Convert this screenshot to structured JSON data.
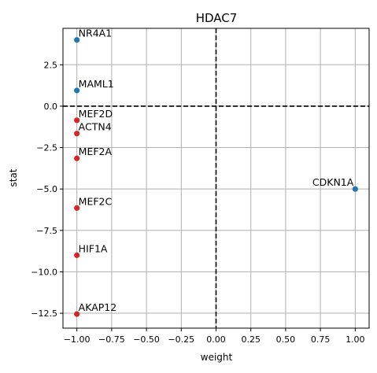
{
  "chart_data": {
    "type": "scatter",
    "title": "HDAC7",
    "xlabel": "weight",
    "ylabel": "stat",
    "xlim": [
      -1.1,
      1.1
    ],
    "ylim": [
      -13.4,
      4.7
    ],
    "xticks": [
      -1.0,
      -0.75,
      -0.5,
      -0.25,
      0.0,
      0.25,
      0.5,
      0.75,
      1.0
    ],
    "xtick_labels": [
      "−1.00",
      "−0.75",
      "−0.50",
      "−0.25",
      "0.00",
      "0.25",
      "0.50",
      "0.75",
      "1.00"
    ],
    "yticks": [
      2.5,
      0.0,
      -2.5,
      -5.0,
      -7.5,
      -10.0,
      -12.5
    ],
    "ytick_labels": [
      "2.5",
      "0.0",
      "−2.5",
      "−5.0",
      "−7.5",
      "−10.0",
      "−12.5"
    ],
    "grid": true,
    "reference_lines": {
      "x": 0,
      "y": 0,
      "style": "dashed",
      "color": "#000000"
    },
    "colors": {
      "positive": "#1f77b4",
      "negative": "#d62728",
      "grid": "#b0b0b0"
    },
    "points": [
      {
        "label": "NR4A1",
        "x": -1.0,
        "y": 4.0,
        "sign": "positive",
        "label_anchor": "start"
      },
      {
        "label": "MAML1",
        "x": -1.0,
        "y": 0.95,
        "sign": "positive",
        "label_anchor": "start"
      },
      {
        "label": "MEF2D",
        "x": -1.0,
        "y": -0.85,
        "sign": "negative",
        "label_anchor": "start"
      },
      {
        "label": "ACTN4",
        "x": -1.0,
        "y": -1.65,
        "sign": "negative",
        "label_anchor": "start"
      },
      {
        "label": "MEF2A",
        "x": -1.0,
        "y": -3.15,
        "sign": "negative",
        "label_anchor": "start"
      },
      {
        "label": "MEF2C",
        "x": -1.0,
        "y": -6.15,
        "sign": "negative",
        "label_anchor": "start"
      },
      {
        "label": "HIF1A",
        "x": -1.0,
        "y": -9.0,
        "sign": "negative",
        "label_anchor": "start"
      },
      {
        "label": "AKAP12",
        "x": -1.0,
        "y": -12.55,
        "sign": "negative",
        "label_anchor": "start"
      },
      {
        "label": "CDKN1A",
        "x": 1.0,
        "y": -5.0,
        "sign": "positive",
        "label_anchor": "end"
      }
    ]
  }
}
